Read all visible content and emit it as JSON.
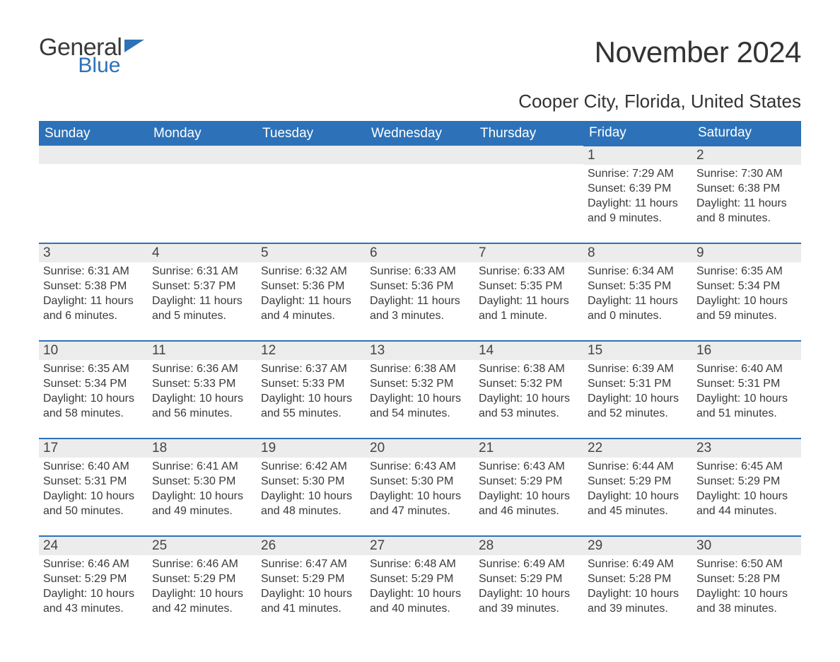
{
  "brand": {
    "word1": "General",
    "word2": "Blue",
    "flag_color": "#2d72b8"
  },
  "colors": {
    "header_bg": "#2d72b8",
    "header_text": "#ffffff",
    "daynum_bg": "#ececec",
    "text": "#3a3a3a",
    "border": "#2d72b8",
    "page_bg": "#ffffff"
  },
  "title": "November 2024",
  "location": "Cooper City, Florida, United States",
  "weekdays": [
    "Sunday",
    "Monday",
    "Tuesday",
    "Wednesday",
    "Thursday",
    "Friday",
    "Saturday"
  ],
  "weeks": [
    [
      null,
      null,
      null,
      null,
      null,
      {
        "n": "1",
        "sunrise": "Sunrise: 7:29 AM",
        "sunset": "Sunset: 6:39 PM",
        "daylight": "Daylight: 11 hours and 9 minutes."
      },
      {
        "n": "2",
        "sunrise": "Sunrise: 7:30 AM",
        "sunset": "Sunset: 6:38 PM",
        "daylight": "Daylight: 11 hours and 8 minutes."
      }
    ],
    [
      {
        "n": "3",
        "sunrise": "Sunrise: 6:31 AM",
        "sunset": "Sunset: 5:38 PM",
        "daylight": "Daylight: 11 hours and 6 minutes."
      },
      {
        "n": "4",
        "sunrise": "Sunrise: 6:31 AM",
        "sunset": "Sunset: 5:37 PM",
        "daylight": "Daylight: 11 hours and 5 minutes."
      },
      {
        "n": "5",
        "sunrise": "Sunrise: 6:32 AM",
        "sunset": "Sunset: 5:36 PM",
        "daylight": "Daylight: 11 hours and 4 minutes."
      },
      {
        "n": "6",
        "sunrise": "Sunrise: 6:33 AM",
        "sunset": "Sunset: 5:36 PM",
        "daylight": "Daylight: 11 hours and 3 minutes."
      },
      {
        "n": "7",
        "sunrise": "Sunrise: 6:33 AM",
        "sunset": "Sunset: 5:35 PM",
        "daylight": "Daylight: 11 hours and 1 minute."
      },
      {
        "n": "8",
        "sunrise": "Sunrise: 6:34 AM",
        "sunset": "Sunset: 5:35 PM",
        "daylight": "Daylight: 11 hours and 0 minutes."
      },
      {
        "n": "9",
        "sunrise": "Sunrise: 6:35 AM",
        "sunset": "Sunset: 5:34 PM",
        "daylight": "Daylight: 10 hours and 59 minutes."
      }
    ],
    [
      {
        "n": "10",
        "sunrise": "Sunrise: 6:35 AM",
        "sunset": "Sunset: 5:34 PM",
        "daylight": "Daylight: 10 hours and 58 minutes."
      },
      {
        "n": "11",
        "sunrise": "Sunrise: 6:36 AM",
        "sunset": "Sunset: 5:33 PM",
        "daylight": "Daylight: 10 hours and 56 minutes."
      },
      {
        "n": "12",
        "sunrise": "Sunrise: 6:37 AM",
        "sunset": "Sunset: 5:33 PM",
        "daylight": "Daylight: 10 hours and 55 minutes."
      },
      {
        "n": "13",
        "sunrise": "Sunrise: 6:38 AM",
        "sunset": "Sunset: 5:32 PM",
        "daylight": "Daylight: 10 hours and 54 minutes."
      },
      {
        "n": "14",
        "sunrise": "Sunrise: 6:38 AM",
        "sunset": "Sunset: 5:32 PM",
        "daylight": "Daylight: 10 hours and 53 minutes."
      },
      {
        "n": "15",
        "sunrise": "Sunrise: 6:39 AM",
        "sunset": "Sunset: 5:31 PM",
        "daylight": "Daylight: 10 hours and 52 minutes."
      },
      {
        "n": "16",
        "sunrise": "Sunrise: 6:40 AM",
        "sunset": "Sunset: 5:31 PM",
        "daylight": "Daylight: 10 hours and 51 minutes."
      }
    ],
    [
      {
        "n": "17",
        "sunrise": "Sunrise: 6:40 AM",
        "sunset": "Sunset: 5:31 PM",
        "daylight": "Daylight: 10 hours and 50 minutes."
      },
      {
        "n": "18",
        "sunrise": "Sunrise: 6:41 AM",
        "sunset": "Sunset: 5:30 PM",
        "daylight": "Daylight: 10 hours and 49 minutes."
      },
      {
        "n": "19",
        "sunrise": "Sunrise: 6:42 AM",
        "sunset": "Sunset: 5:30 PM",
        "daylight": "Daylight: 10 hours and 48 minutes."
      },
      {
        "n": "20",
        "sunrise": "Sunrise: 6:43 AM",
        "sunset": "Sunset: 5:30 PM",
        "daylight": "Daylight: 10 hours and 47 minutes."
      },
      {
        "n": "21",
        "sunrise": "Sunrise: 6:43 AM",
        "sunset": "Sunset: 5:29 PM",
        "daylight": "Daylight: 10 hours and 46 minutes."
      },
      {
        "n": "22",
        "sunrise": "Sunrise: 6:44 AM",
        "sunset": "Sunset: 5:29 PM",
        "daylight": "Daylight: 10 hours and 45 minutes."
      },
      {
        "n": "23",
        "sunrise": "Sunrise: 6:45 AM",
        "sunset": "Sunset: 5:29 PM",
        "daylight": "Daylight: 10 hours and 44 minutes."
      }
    ],
    [
      {
        "n": "24",
        "sunrise": "Sunrise: 6:46 AM",
        "sunset": "Sunset: 5:29 PM",
        "daylight": "Daylight: 10 hours and 43 minutes."
      },
      {
        "n": "25",
        "sunrise": "Sunrise: 6:46 AM",
        "sunset": "Sunset: 5:29 PM",
        "daylight": "Daylight: 10 hours and 42 minutes."
      },
      {
        "n": "26",
        "sunrise": "Sunrise: 6:47 AM",
        "sunset": "Sunset: 5:29 PM",
        "daylight": "Daylight: 10 hours and 41 minutes."
      },
      {
        "n": "27",
        "sunrise": "Sunrise: 6:48 AM",
        "sunset": "Sunset: 5:29 PM",
        "daylight": "Daylight: 10 hours and 40 minutes."
      },
      {
        "n": "28",
        "sunrise": "Sunrise: 6:49 AM",
        "sunset": "Sunset: 5:29 PM",
        "daylight": "Daylight: 10 hours and 39 minutes."
      },
      {
        "n": "29",
        "sunrise": "Sunrise: 6:49 AM",
        "sunset": "Sunset: 5:28 PM",
        "daylight": "Daylight: 10 hours and 39 minutes."
      },
      {
        "n": "30",
        "sunrise": "Sunrise: 6:50 AM",
        "sunset": "Sunset: 5:28 PM",
        "daylight": "Daylight: 10 hours and 38 minutes."
      }
    ]
  ]
}
